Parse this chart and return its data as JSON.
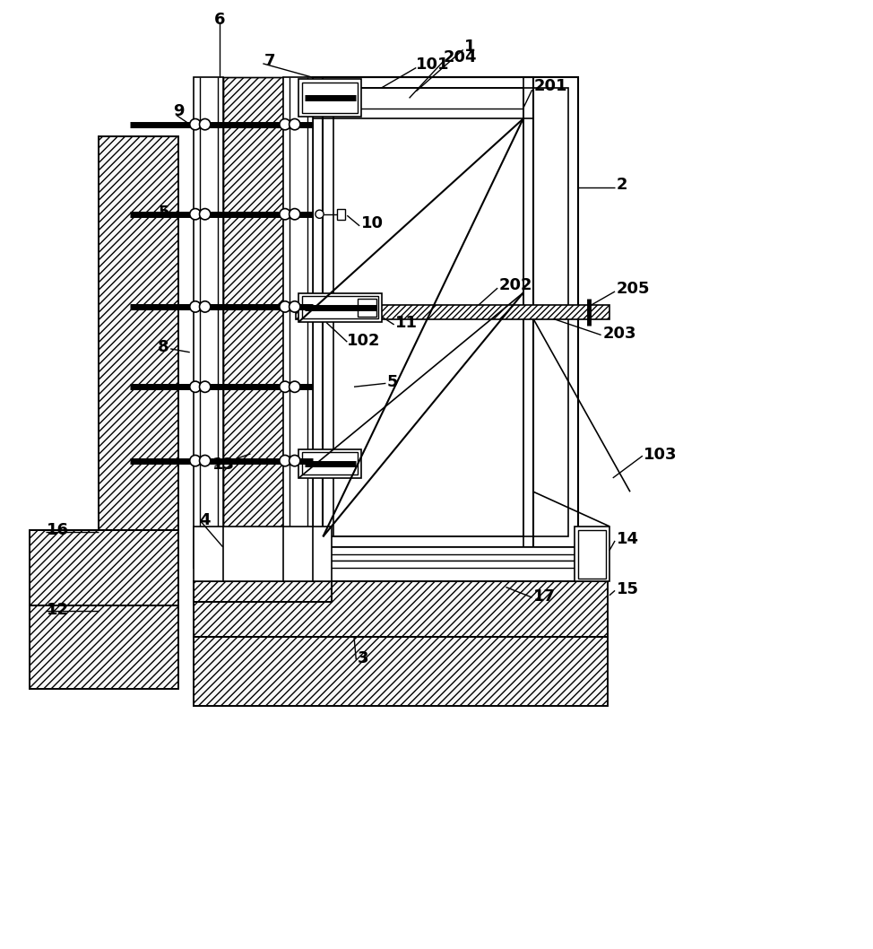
{
  "bg_color": "#ffffff",
  "lc": "#000000",
  "fs": 13
}
